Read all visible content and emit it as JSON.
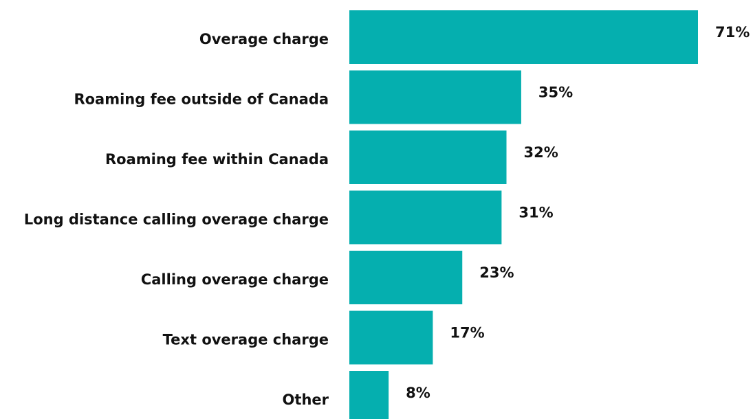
{
  "chart_data": {
    "type": "bar",
    "orientation": "horizontal",
    "categories": [
      "Overage charge",
      "Roaming fee outside of Canada",
      "Roaming fee within Canada",
      "Long distance calling overage charge",
      "Calling overage charge",
      "Text overage charge",
      "Other"
    ],
    "values": [
      71,
      35,
      32,
      31,
      23,
      17,
      8
    ],
    "value_labels": [
      "71%",
      "35%",
      "32%",
      "31%",
      "23%",
      "17%",
      "8%"
    ],
    "color": "#05afaf"
  }
}
